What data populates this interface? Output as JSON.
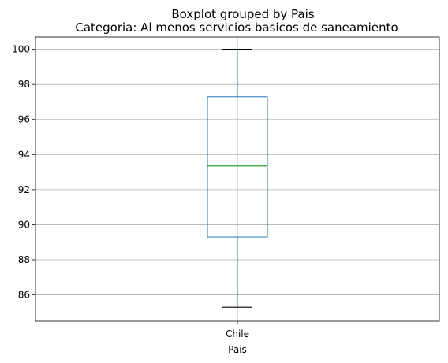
{
  "chart_data": {
    "type": "boxplot",
    "title": "Boxplot grouped by Pais",
    "subtitle": "Categoria: Al menos servicios basicos de saneamiento",
    "xlabel": "Pais",
    "ylabel": "",
    "categories": [
      "Chile"
    ],
    "boxes": [
      {
        "category": "Chile",
        "min": 85.3,
        "q1": 89.3,
        "median": 93.35,
        "q3": 97.3,
        "max": 100.0
      }
    ],
    "ylim": [
      84.5,
      100.7
    ],
    "yticks": [
      86,
      88,
      90,
      92,
      94,
      96,
      98,
      100
    ],
    "grid": true,
    "colors": {
      "box": "#1f77b4",
      "median": "#2ca02c",
      "whisker": "#000000",
      "grid": "#b0b0b0"
    }
  }
}
